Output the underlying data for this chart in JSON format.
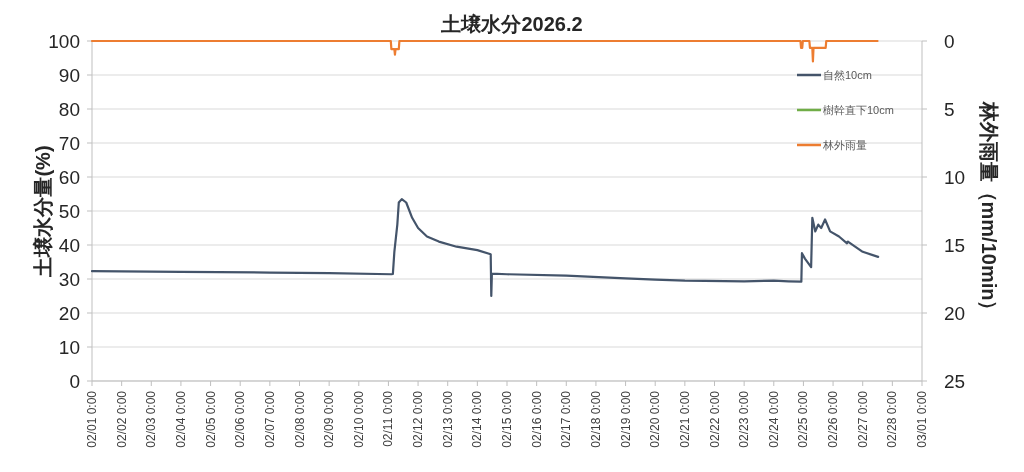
{
  "chart_data": {
    "type": "line",
    "title": "土壌水分2026.2",
    "ylabel": "土壌水分量(%)",
    "y2label": "林外雨量（mm/10min）",
    "xlim": [
      "2026-02-01T00:00",
      "2026-03-01T00:00"
    ],
    "xticks": [
      {
        "value": "2026-02-01T00:00",
        "label": "02/01 0:00"
      },
      {
        "value": "2026-02-02T00:00",
        "label": "02/02 0:00"
      },
      {
        "value": "2026-02-03T00:00",
        "label": "02/03 0:00"
      },
      {
        "value": "2026-02-04T00:00",
        "label": "02/04 0:00"
      },
      {
        "value": "2026-02-05T00:00",
        "label": "02/05 0:00"
      },
      {
        "value": "2026-02-06T00:00",
        "label": "02/06 0:00"
      },
      {
        "value": "2026-02-07T00:00",
        "label": "02/07 0:00"
      },
      {
        "value": "2026-02-08T00:00",
        "label": "02/08 0:00"
      },
      {
        "value": "2026-02-09T00:00",
        "label": "02/09 0:00"
      },
      {
        "value": "2026-02-10T00:00",
        "label": "02/10 0:00"
      },
      {
        "value": "2026-02-11T00:00",
        "label": "02/11 0:00"
      },
      {
        "value": "2026-02-12T00:00",
        "label": "02/12 0:00"
      },
      {
        "value": "2026-02-13T00:00",
        "label": "02/13 0:00"
      },
      {
        "value": "2026-02-14T00:00",
        "label": "02/14 0:00"
      },
      {
        "value": "2026-02-15T00:00",
        "label": "02/15 0:00"
      },
      {
        "value": "2026-02-16T00:00",
        "label": "02/16 0:00"
      },
      {
        "value": "2026-02-17T00:00",
        "label": "02/17 0:00"
      },
      {
        "value": "2026-02-18T00:00",
        "label": "02/18 0:00"
      },
      {
        "value": "2026-02-19T00:00",
        "label": "02/19 0:00"
      },
      {
        "value": "2026-02-20T00:00",
        "label": "02/20 0:00"
      },
      {
        "value": "2026-02-21T00:00",
        "label": "02/21 0:00"
      },
      {
        "value": "2026-02-22T00:00",
        "label": "02/22 0:00"
      },
      {
        "value": "2026-02-23T00:00",
        "label": "02/23 0:00"
      },
      {
        "value": "2026-02-24T00:00",
        "label": "02/24 0:00"
      },
      {
        "value": "2026-02-25T00:00",
        "label": "02/25 0:00"
      },
      {
        "value": "2026-02-26T00:00",
        "label": "02/26 0:00"
      },
      {
        "value": "2026-02-27T00:00",
        "label": "02/27 0:00"
      },
      {
        "value": "2026-02-28T00:00",
        "label": "02/28 0:00"
      },
      {
        "value": "2026-03-01T00:00",
        "label": "03/01 0:00"
      }
    ],
    "ylim": [
      0,
      100
    ],
    "yticks": [
      0,
      10,
      20,
      30,
      40,
      50,
      60,
      70,
      80,
      90,
      100
    ],
    "y2lim": [
      25,
      0
    ],
    "y2ticks": [
      0,
      5,
      10,
      15,
      20,
      25
    ],
    "grid": "y",
    "legend": "top right",
    "marker": "none",
    "line_style": "solid",
    "series": [
      {
        "name": "自然10cm",
        "color": "#44546a",
        "x": [
          "2026-02-01T00:00",
          "2026-02-04T00:00",
          "2026-02-07T00:00",
          "2026-02-09T00:00",
          "2026-02-11T02:24",
          "2026-02-11T03:36",
          "2026-02-11T04:48",
          "2026-02-11T07:12",
          "2026-02-11T08:24",
          "2026-02-11T10:48",
          "2026-02-11T14:24",
          "2026-02-11T19:12",
          "2026-02-12T00:00",
          "2026-02-12T07:12",
          "2026-02-12T16:48",
          "2026-02-13T07:12",
          "2026-02-14T00:00",
          "2026-02-14T10:48",
          "2026-02-14T11:17",
          "2026-02-14T11:46",
          "2026-02-15T00:00",
          "2026-02-17T00:00",
          "2026-02-19T00:00",
          "2026-02-20T00:00",
          "2026-02-21T00:00",
          "2026-02-23T00:00",
          "2026-02-24T00:00",
          "2026-02-24T12:00",
          "2026-02-24T22:19",
          "2026-02-24T22:48",
          "2026-02-25T01:12",
          "2026-02-25T06:14",
          "2026-02-25T07:12",
          "2026-02-25T09:36",
          "2026-02-25T12:00",
          "2026-02-25T14:24",
          "2026-02-25T17:31",
          "2026-02-25T21:36",
          "2026-02-26T04:48",
          "2026-02-26T11:17",
          "2026-02-26T12:00",
          "2026-02-27T00:00",
          "2026-02-27T12:29"
        ],
        "values": [
          32.3,
          32.1,
          31.9,
          31.7,
          31.4,
          31.5,
          38,
          46,
          52.5,
          53.5,
          52.5,
          48,
          45,
          42.5,
          41,
          39.5,
          38.5,
          37.3,
          25,
          31.6,
          31.4,
          31,
          30.2,
          29.8,
          29.5,
          29.3,
          29.5,
          29.3,
          29.2,
          37.6,
          36,
          33.5,
          48,
          44,
          46,
          45,
          47.5,
          44,
          42.5,
          40.5,
          41,
          38,
          36.5
        ]
      },
      {
        "name": "樹幹直下10cm",
        "color": "#70ad47"
      },
      {
        "name": "林外雨量",
        "color": "#ed7d31",
        "axis": "y2",
        "x": [
          "2026-02-01T00:00",
          "2026-02-11T01:55",
          "2026-02-11T02:24",
          "2026-02-11T04:48",
          "2026-02-11T05:17",
          "2026-02-11T05:46",
          "2026-02-11T08:24",
          "2026-02-11T08:53",
          "2026-02-24T21:36",
          "2026-02-24T22:05",
          "2026-02-24T23:02",
          "2026-02-24T23:31",
          "2026-02-25T04:48",
          "2026-02-25T05:17",
          "2026-02-25T07:12",
          "2026-02-25T07:41",
          "2026-02-25T08:10",
          "2026-02-25T18:00",
          "2026-02-25T18:29",
          "2026-02-27T12:00"
        ],
        "values": [
          0,
          0,
          0.6,
          0.6,
          1.0,
          0.6,
          0.6,
          0,
          0,
          0.5,
          0.5,
          0,
          0,
          0.5,
          0.5,
          1.5,
          0.5,
          0.5,
          0,
          0
        ]
      }
    ]
  }
}
